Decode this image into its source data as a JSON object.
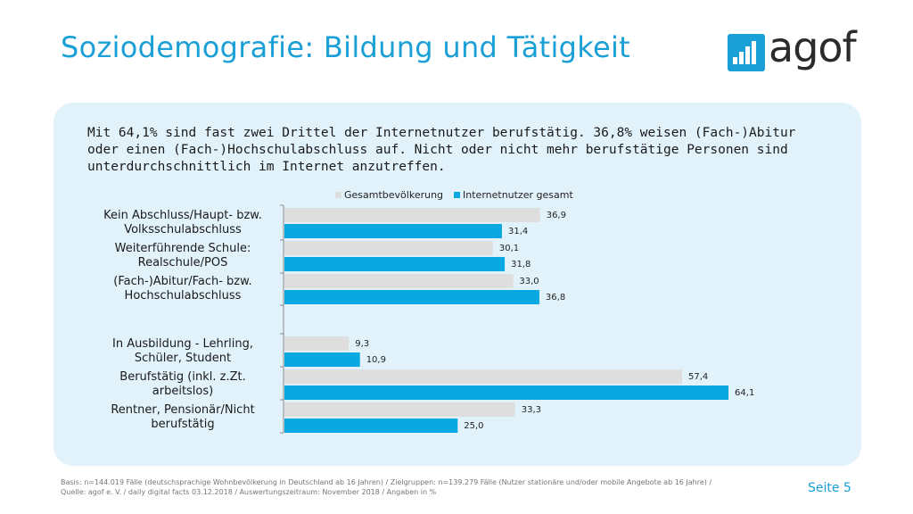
{
  "slide": {
    "title": "Soziodemografie: Bildung und Tätigkeit",
    "logo_text": "agof",
    "intro": "Mit 64,1% sind fast zwei Drittel der Internetnutzer berufstätig. 36,8% weisen (Fach-)Abitur oder einen (Fach-)Hochschulabschluss auf. Nicht oder nicht mehr berufstätige Personen sind unterdurchschnittlich im Internet anzutreffen.",
    "footer": "Basis: n=144.019 Fälle (deutschsprachige Wohnbevölkerung in Deutschland ab 16 Jahren) / Zielgruppen: n=139.279 Fälle (Nutzer stationäre und/oder mobile Angebote ab 16 Jahre) / Quelle: agof e. V. / daily digital facts 03.12.2018 / Auswertungszeitraum: November 2018 / Angaben in %",
    "page": "Seite 5"
  },
  "colors": {
    "accent": "#1a9fd6",
    "gesamt": "#dedede",
    "internet": "#0aa8e0",
    "panel": "#e1f2fb"
  },
  "chart_data": {
    "type": "bar",
    "orientation": "horizontal",
    "categories": [
      "Kein Abschluss/Haupt- bzw. Volksschulabschluss",
      "Weiterführende Schule: Realschule/POS",
      "(Fach-)Abitur/Fach- bzw. Hochschulabschluss",
      "In Ausbildung - Lehrling, Schüler, Student",
      "Berufstätig (inkl. z.Zt. arbeitslos)",
      "Rentner, Pensionär/Nicht berufstätig"
    ],
    "category_lines": [
      [
        "Kein Abschluss/Haupt- bzw.",
        "Volksschulabschluss"
      ],
      [
        "Weiterführende Schule:",
        "Realschule/POS"
      ],
      [
        "(Fach-)Abitur/Fach- bzw.",
        "Hochschulabschluss"
      ],
      [
        "In Ausbildung - Lehrling,",
        "Schüler, Student"
      ],
      [
        "Berufstätig (inkl. z.Zt.",
        "arbeitslos)"
      ],
      [
        "Rentner, Pensionär/Nicht",
        "berufstätig"
      ]
    ],
    "series": [
      {
        "name": "Gesamtbevölkerung",
        "values": [
          36.9,
          30.1,
          33.0,
          9.3,
          57.4,
          33.3
        ],
        "labels": [
          "36,9",
          "30,1",
          "33,0",
          "9,3",
          "57,4",
          "33,3"
        ]
      },
      {
        "name": "Internetnutzer gesamt",
        "values": [
          31.4,
          31.8,
          36.8,
          10.9,
          64.1,
          25.0
        ],
        "labels": [
          "31,4",
          "31,8",
          "36,8",
          "10,9",
          "64,1",
          "25,0"
        ]
      }
    ],
    "legend_position": "top",
    "grid": false
  }
}
